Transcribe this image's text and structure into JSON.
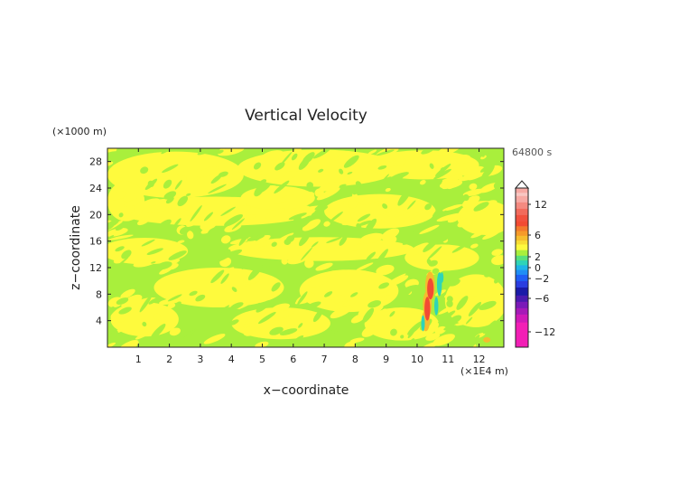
{
  "chart_data": {
    "type": "heatmap",
    "title": "Vertical Velocity",
    "xlabel": "x−coordinate",
    "ylabel": "z−coordinate",
    "x_unit": "(×1E4 m)",
    "y_unit": "(×1000 m)",
    "time_label": "64800 s",
    "xlim": [
      0,
      12.8
    ],
    "ylim": [
      0,
      30
    ],
    "x_ticks": [
      "1",
      "2",
      "3",
      "4",
      "5",
      "6",
      "7",
      "8",
      "9",
      "10",
      "11",
      "12"
    ],
    "y_ticks": [
      "4",
      "8",
      "12",
      "16",
      "20",
      "24",
      "28"
    ],
    "colorbar": {
      "labels": [
        "12",
        "6",
        "2",
        "0",
        "−2",
        "−6",
        "−12"
      ],
      "colors": {
        "pos_high": "#f7aaa4",
        "pos_mid": "#f24b33",
        "pos_low": "#f5bd2e",
        "near_zero_pos": "#fefa3d",
        "near_zero_neg": "#a9ef3c",
        "neg_low": "#2fd4b7",
        "neg_mid": "#1f5ef5",
        "neg_deep": "#1a1aa8",
        "neg_high": "#f21fb5"
      }
    }
  }
}
